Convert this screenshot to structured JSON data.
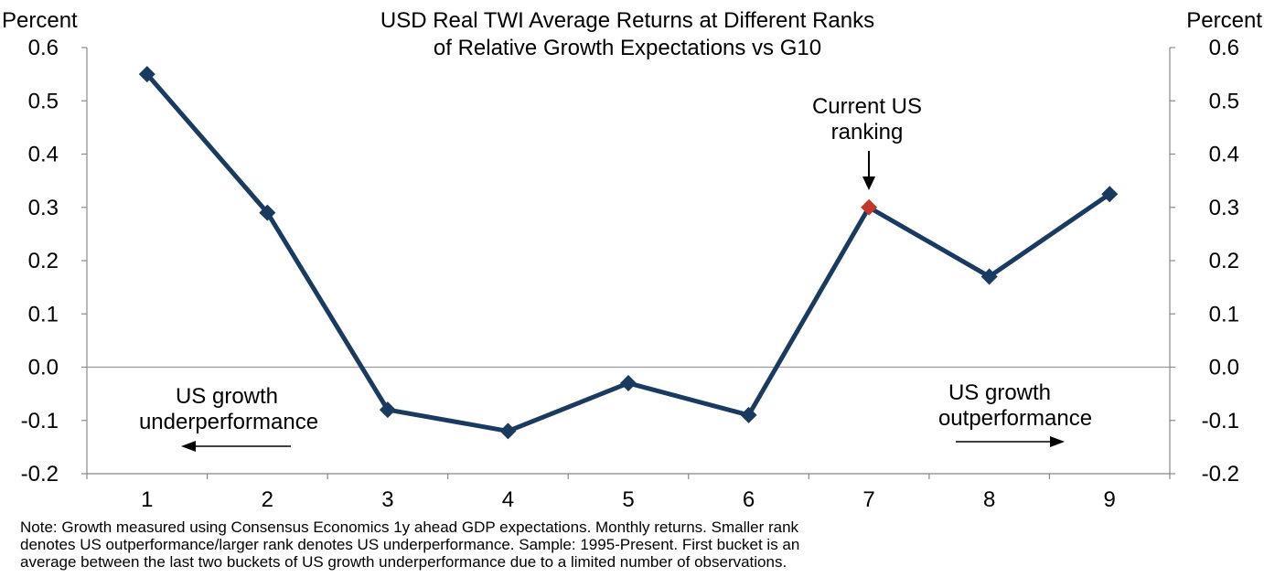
{
  "chart_data": {
    "type": "line",
    "title": [
      "USD Real TWI Average Returns at Different Ranks",
      "of Relative Growth Expectations vs G10"
    ],
    "y_left_label": "Percent",
    "y_right_label": "Percent",
    "categories": [
      "1",
      "2",
      "3",
      "4",
      "5",
      "6",
      "7",
      "8",
      "9"
    ],
    "values": [
      0.55,
      0.29,
      -0.08,
      -0.12,
      -0.03,
      -0.09,
      0.3,
      0.17,
      0.325
    ],
    "highlight_index": 6,
    "ylim": [
      -0.2,
      0.6
    ],
    "yticks": [
      "0.6",
      "0.5",
      "0.4",
      "0.3",
      "0.2",
      "0.1",
      "0.0",
      "-0.1",
      "-0.2"
    ],
    "colors": {
      "line": "#1a3a5f",
      "highlight": "#c0392b",
      "zero_line": "#999999",
      "axis": "#888888"
    },
    "annotations": {
      "current": [
        "Current US",
        "ranking"
      ],
      "left": [
        "US growth",
        "underperformance"
      ],
      "right": [
        "US growth",
        "outperformance"
      ]
    }
  },
  "note": [
    "Note: Growth  measured using Consensus Economics 1y ahead GDP expectations. Monthly returns. Smaller rank",
    "denotes US outperformance/larger rank denotes US underperformance. Sample:  1995-Present.  First bucket is an",
    "average between  the last two buckets of US growth underperformance due to a limited number of observations."
  ]
}
